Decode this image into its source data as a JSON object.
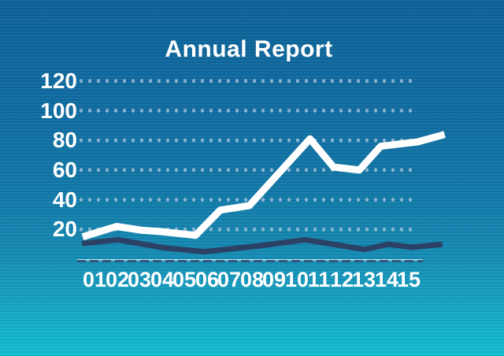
{
  "chart_data": {
    "type": "line",
    "title": "Annual Report",
    "xlabel": "",
    "ylabel": "",
    "categories": [
      "01",
      "02",
      "03",
      "04",
      "05",
      "06",
      "07",
      "08",
      "09",
      "10",
      "11",
      "12",
      "13",
      "14",
      "15"
    ],
    "y_ticks": [
      120,
      100,
      80,
      60,
      40,
      20
    ],
    "ylim": [
      0,
      130
    ],
    "grid": "dotted-horizontal-rows",
    "legend": "none",
    "series": [
      {
        "name": "white-line",
        "color": "#ffffff",
        "stroke_width": 9,
        "points": [
          [
            0.47,
            15
          ],
          [
            1.98,
            22
          ],
          [
            3.07,
            19.5
          ],
          [
            4.0,
            18.5
          ],
          [
            5.5,
            16
          ],
          [
            6.6,
            33
          ],
          [
            7.9,
            36
          ],
          [
            10.6,
            81
          ],
          [
            11.65,
            62
          ],
          [
            12.8,
            60
          ],
          [
            13.75,
            76
          ],
          [
            15.4,
            79
          ],
          [
            16.6,
            84
          ]
        ],
        "approx_values_at_labels": [
          18,
          22,
          20,
          18,
          17,
          24,
          34,
          37,
          54,
          71,
          74,
          61,
          63,
          77,
          78
        ]
      },
      {
        "name": "navy-line",
        "color": "#2b4165",
        "stroke_width": 7,
        "points": [
          [
            0.44,
            10.5
          ],
          [
            2.05,
            13
          ],
          [
            4.16,
            7.5
          ],
          [
            5.9,
            5
          ],
          [
            8.37,
            9
          ],
          [
            10.4,
            13
          ],
          [
            13.05,
            6.5
          ],
          [
            14.1,
            10
          ],
          [
            15.15,
            8
          ],
          [
            16.5,
            10
          ]
        ],
        "approx_values_at_labels": [
          11,
          13,
          10,
          8,
          6,
          5,
          7,
          8,
          10,
          12,
          11,
          9,
          7,
          10,
          8
        ]
      }
    ],
    "colors": {
      "background_top": "#0c6196",
      "background_bottom": "#12bdd3",
      "grid_dot": "#a9c3d9",
      "axis_line": "#bfe3ee",
      "axis_dash": "#2b4165",
      "label_text": "#ffffff"
    }
  }
}
